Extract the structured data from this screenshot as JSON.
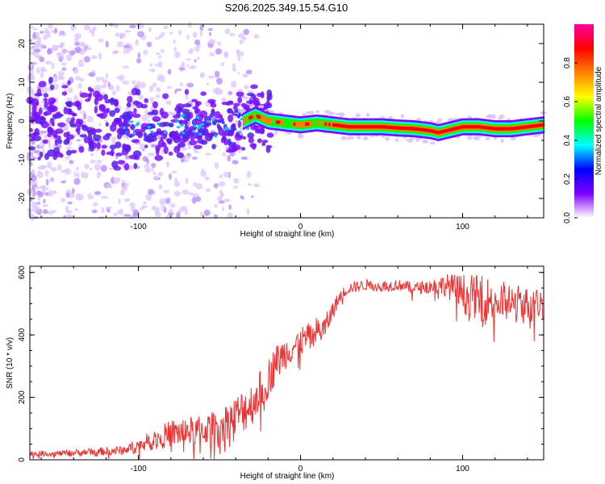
{
  "figure_title": "S206.2025.349.15.54.G10",
  "chart_data": [
    {
      "type": "heatmap",
      "title": "",
      "xlabel": "Height of straight line (km)",
      "ylabel": "Frequency (Hz)",
      "xlim": [
        -167,
        150
      ],
      "ylim": [
        -25,
        25
      ],
      "xticks": [
        -100,
        0,
        100
      ],
      "yticks": [
        -20,
        -10,
        0,
        10,
        20
      ],
      "ridge": {
        "x": [
          -167,
          -140,
          -110,
          -80,
          -50,
          -35,
          -28,
          -20,
          -10,
          0,
          10,
          20,
          30,
          40,
          50,
          60,
          70,
          80,
          85,
          90,
          95,
          100,
          110,
          120,
          130,
          140,
          150
        ],
        "freq": [
          0,
          0,
          -2,
          -1,
          -1,
          0,
          1.5,
          0,
          -0.5,
          -1,
          -0.5,
          -1,
          -1.5,
          -1.5,
          -1.5,
          -1.8,
          -2,
          -2.5,
          -3,
          -2.5,
          -2,
          -1.5,
          -1.5,
          -2,
          -2,
          -1.5,
          -1
        ]
      },
      "colorbar": {
        "label": "Normalized spectral amplitude",
        "range": [
          0,
          1
        ],
        "ticks": [
          "0.0",
          "0.2",
          "0.4",
          "0.6",
          "0.8"
        ],
        "colors": [
          "#ffffff",
          "#8000ff",
          "#0000ff",
          "#00ffff",
          "#00ff00",
          "#ffff00",
          "#ff8000",
          "#ff0000",
          "#ff00a0"
        ]
      }
    },
    {
      "type": "line",
      "title": "",
      "xlabel": "Height of straight line (km)",
      "ylabel": "SNR (10 * v/v)",
      "xlim": [
        -167,
        150
      ],
      "ylim": [
        0,
        620
      ],
      "xticks": [
        -100,
        0,
        100
      ],
      "yticks": [
        0,
        200,
        400,
        600
      ],
      "color": "#ee3333",
      "series": [
        {
          "name": "SNR",
          "x": [
            -167,
            -150,
            -130,
            -110,
            -100,
            -90,
            -80,
            -70,
            -60,
            -50,
            -40,
            -35,
            -30,
            -25,
            -20,
            -15,
            -10,
            -5,
            0,
            5,
            10,
            15,
            20,
            25,
            30,
            40,
            50,
            60,
            70,
            80,
            90,
            100,
            110,
            120,
            130,
            140,
            150
          ],
          "mean": [
            20,
            20,
            25,
            30,
            45,
            65,
            85,
            90,
            95,
            110,
            140,
            160,
            180,
            220,
            260,
            310,
            340,
            360,
            380,
            390,
            410,
            420,
            480,
            530,
            550,
            560,
            555,
            560,
            550,
            555,
            560,
            530,
            520,
            510,
            500,
            495,
            500
          ],
          "spread": [
            15,
            15,
            20,
            25,
            40,
            55,
            75,
            80,
            80,
            90,
            110,
            120,
            120,
            110,
            110,
            100,
            90,
            80,
            80,
            80,
            80,
            70,
            50,
            30,
            30,
            30,
            30,
            30,
            30,
            40,
            60,
            110,
            120,
            120,
            110,
            100,
            80
          ]
        }
      ]
    }
  ]
}
